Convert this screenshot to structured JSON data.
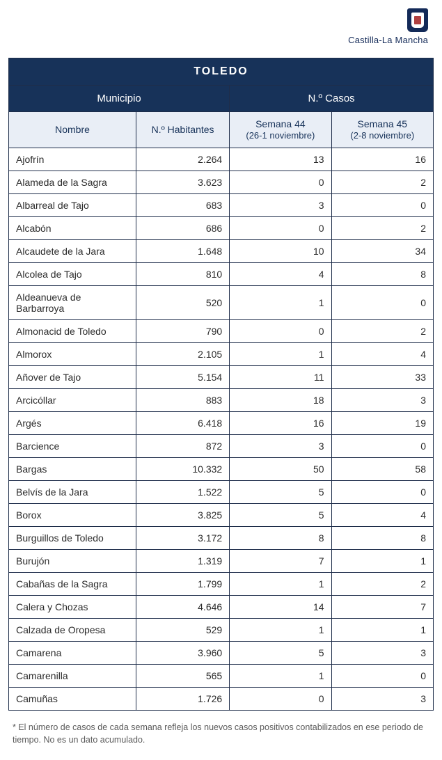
{
  "brand": {
    "name": "Castilla-La Mancha"
  },
  "colors": {
    "header_dark": "#173259",
    "header_light": "#e9eef6",
    "header_dark_text": "#173259",
    "body_text": "#2b2b2b",
    "border": "#1e2d4a"
  },
  "table": {
    "title": "TOLEDO",
    "group_left": "Municipio",
    "group_right": "N.º Casos",
    "columns": {
      "name": "Nombre",
      "pop": "N.º Habitantes",
      "w1": "Semana 44",
      "w1_sub": "(26-1 noviembre)",
      "w2": "Semana 45",
      "w2_sub": "(2-8 noviembre)"
    },
    "col_widths": [
      "30%",
      "22%",
      "24%",
      "24%"
    ],
    "rows": [
      {
        "name": "Ajofrín",
        "pop": "2.264",
        "w1": "13",
        "w2": "16"
      },
      {
        "name": "Alameda de la Sagra",
        "pop": "3.623",
        "w1": "0",
        "w2": "2"
      },
      {
        "name": "Albarreal de Tajo",
        "pop": "683",
        "w1": "3",
        "w2": "0"
      },
      {
        "name": "Alcabón",
        "pop": "686",
        "w1": "0",
        "w2": "2"
      },
      {
        "name": "Alcaudete de la Jara",
        "pop": "1.648",
        "w1": "10",
        "w2": "34"
      },
      {
        "name": "Alcolea de Tajo",
        "pop": "810",
        "w1": "4",
        "w2": "8"
      },
      {
        "name": "Aldeanueva de Barbarroya",
        "pop": "520",
        "w1": "1",
        "w2": "0"
      },
      {
        "name": "Almonacid de Toledo",
        "pop": "790",
        "w1": "0",
        "w2": "2"
      },
      {
        "name": "Almorox",
        "pop": "2.105",
        "w1": "1",
        "w2": "4"
      },
      {
        "name": "Añover de Tajo",
        "pop": "5.154",
        "w1": "11",
        "w2": "33"
      },
      {
        "name": "Arcicóllar",
        "pop": "883",
        "w1": "18",
        "w2": "3"
      },
      {
        "name": "Argés",
        "pop": "6.418",
        "w1": "16",
        "w2": "19"
      },
      {
        "name": "Barcience",
        "pop": "872",
        "w1": "3",
        "w2": "0"
      },
      {
        "name": "Bargas",
        "pop": "10.332",
        "w1": "50",
        "w2": "58"
      },
      {
        "name": "Belvís de la Jara",
        "pop": "1.522",
        "w1": "5",
        "w2": "0"
      },
      {
        "name": "Borox",
        "pop": "3.825",
        "w1": "5",
        "w2": "4"
      },
      {
        "name": "Burguillos de Toledo",
        "pop": "3.172",
        "w1": "8",
        "w2": "8"
      },
      {
        "name": "Burujón",
        "pop": "1.319",
        "w1": "7",
        "w2": "1"
      },
      {
        "name": "Cabañas de la Sagra",
        "pop": "1.799",
        "w1": "1",
        "w2": "2"
      },
      {
        "name": "Calera y Chozas",
        "pop": "4.646",
        "w1": "14",
        "w2": "7"
      },
      {
        "name": "Calzada de Oropesa",
        "pop": "529",
        "w1": "1",
        "w2": "1"
      },
      {
        "name": "Camarena",
        "pop": "3.960",
        "w1": "5",
        "w2": "3"
      },
      {
        "name": "Camarenilla",
        "pop": "565",
        "w1": "1",
        "w2": "0"
      },
      {
        "name": "Camuñas",
        "pop": "1.726",
        "w1": "0",
        "w2": "3"
      }
    ]
  },
  "footnote": "* El número de casos de cada semana refleja los nuevos casos positivos contabilizados en ese periodo de tiempo. No es un dato acumulado."
}
